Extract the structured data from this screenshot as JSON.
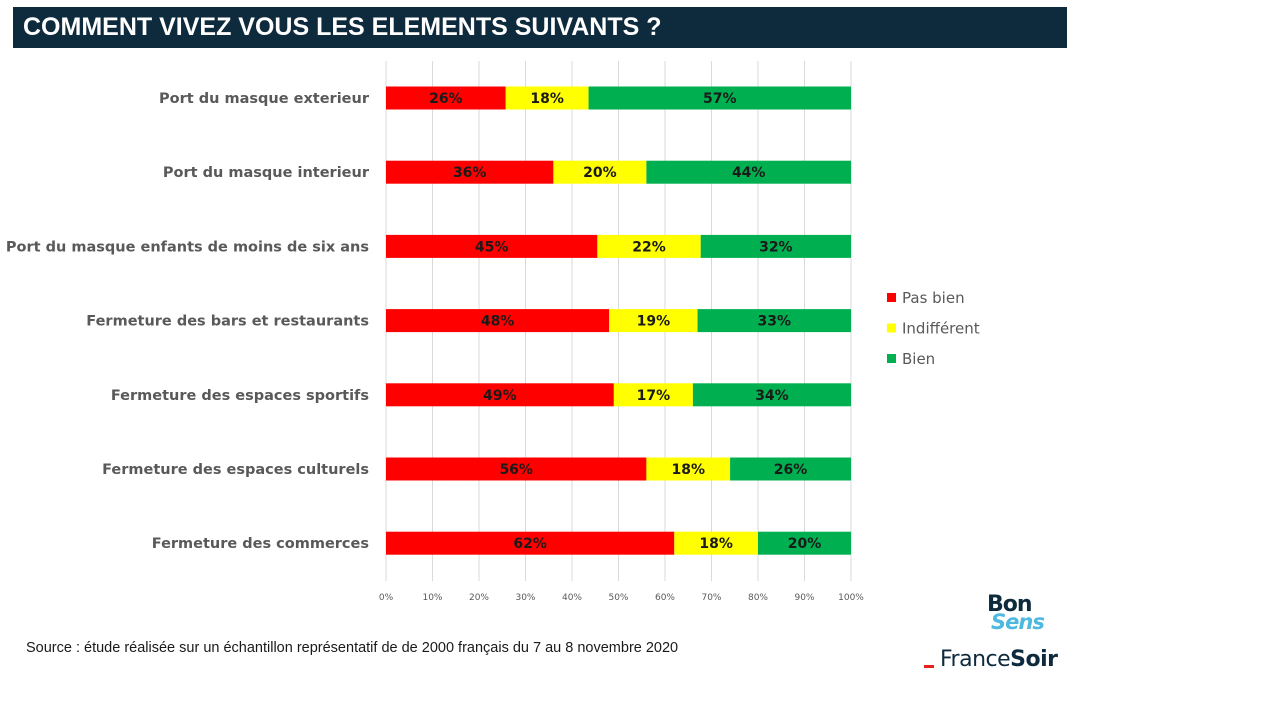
{
  "title": "COMMENT VIVEZ VOUS LES ELEMENTS SUIVANTS ?",
  "source": "Source : étude réalisée sur un échantillon représentatif de de 2000 français du 7 au 8 novembre 2020",
  "logos": {
    "bonsens_top": "Bon",
    "bonsens_bottom": "Sens",
    "francesoir_france": "France",
    "francesoir_soir": "Soir"
  },
  "chart_data": {
    "type": "bar",
    "orientation": "horizontal",
    "stacked": true,
    "categories": [
      "Port du masque exterieur",
      "Port du masque interieur",
      "Port du masque enfants de moins de six ans",
      "Fermeture des bars et restaurants",
      "Fermeture des espaces sportifs",
      "Fermeture des espaces culturels",
      "Fermeture des commerces"
    ],
    "series": [
      {
        "name": "Pas bien",
        "color": "#ff0000",
        "values": [
          26,
          36,
          45,
          48,
          49,
          56,
          62
        ]
      },
      {
        "name": "Indifférent",
        "color": "#ffff00",
        "values": [
          18,
          20,
          22,
          19,
          17,
          18,
          18
        ]
      },
      {
        "name": "Bien",
        "color": "#00b050",
        "values": [
          57,
          44,
          32,
          33,
          34,
          26,
          20
        ]
      }
    ],
    "xlim": [
      0,
      100
    ],
    "xticks": [
      "0%",
      "10%",
      "20%",
      "30%",
      "40%",
      "50%",
      "60%",
      "70%",
      "80%",
      "90%",
      "100%"
    ],
    "grid": true,
    "legend_position": "right"
  }
}
